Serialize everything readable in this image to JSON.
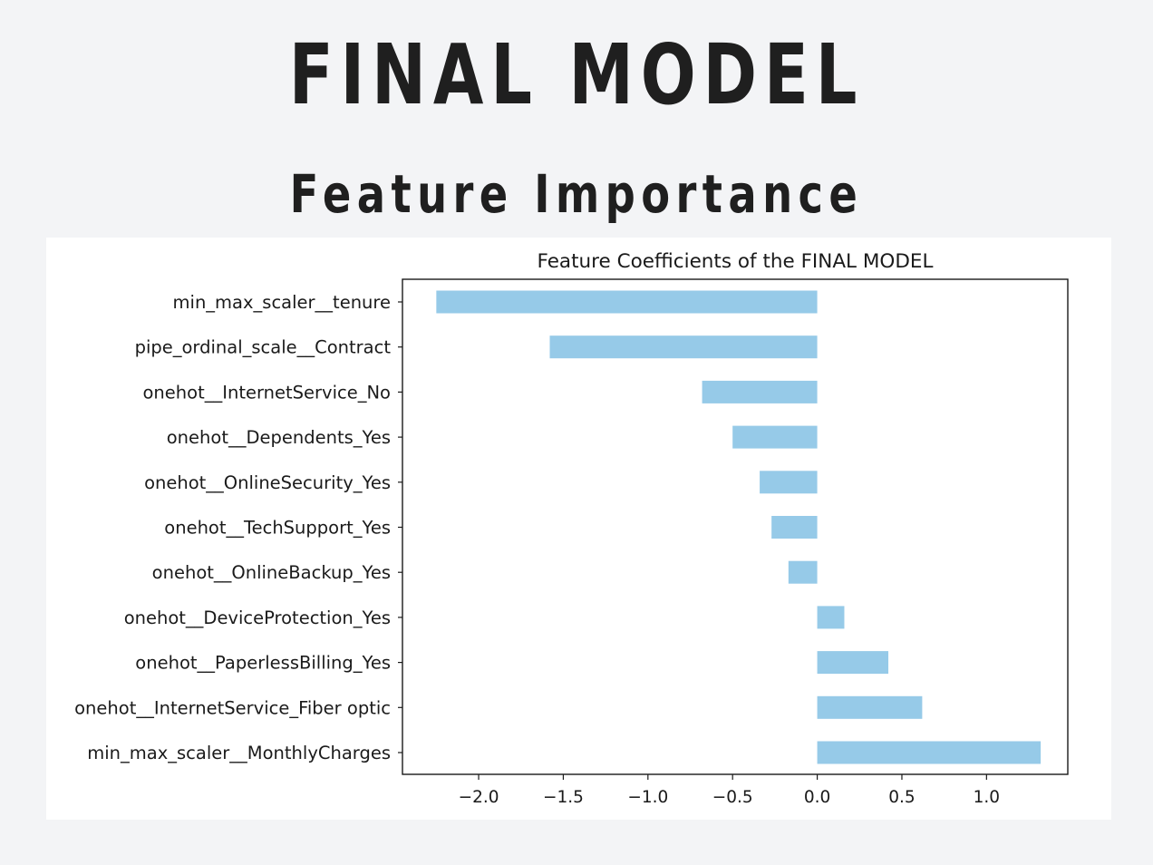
{
  "header": {
    "title": "FINAL MODEL",
    "subtitle": "Feature Importance"
  },
  "chart_data": {
    "type": "bar",
    "orientation": "horizontal",
    "title": "Feature Coefficients of the FINAL MODEL",
    "xlabel": "",
    "ylabel": "",
    "categories": [
      "min_max_scaler__tenure",
      "pipe_ordinal_scale__Contract",
      "onehot__InternetService_No",
      "onehot__Dependents_Yes",
      "onehot__OnlineSecurity_Yes",
      "onehot__TechSupport_Yes",
      "onehot__OnlineBackup_Yes",
      "onehot__DeviceProtection_Yes",
      "onehot__PaperlessBilling_Yes",
      "onehot__InternetService_Fiber optic",
      "min_max_scaler__MonthlyCharges"
    ],
    "values": [
      -2.25,
      -1.58,
      -0.68,
      -0.5,
      -0.34,
      -0.27,
      -0.17,
      0.16,
      0.42,
      0.62,
      1.32
    ],
    "xlim": [
      -2.45,
      1.48
    ],
    "xticks": [
      -2.0,
      -1.5,
      -1.0,
      -0.5,
      0.0,
      0.5,
      1.0
    ],
    "xtick_labels": [
      "−2.0",
      "−1.5",
      "−1.0",
      "−0.5",
      "0.0",
      "0.5",
      "1.0"
    ],
    "grid": false,
    "bar_color": "#96cae8"
  }
}
